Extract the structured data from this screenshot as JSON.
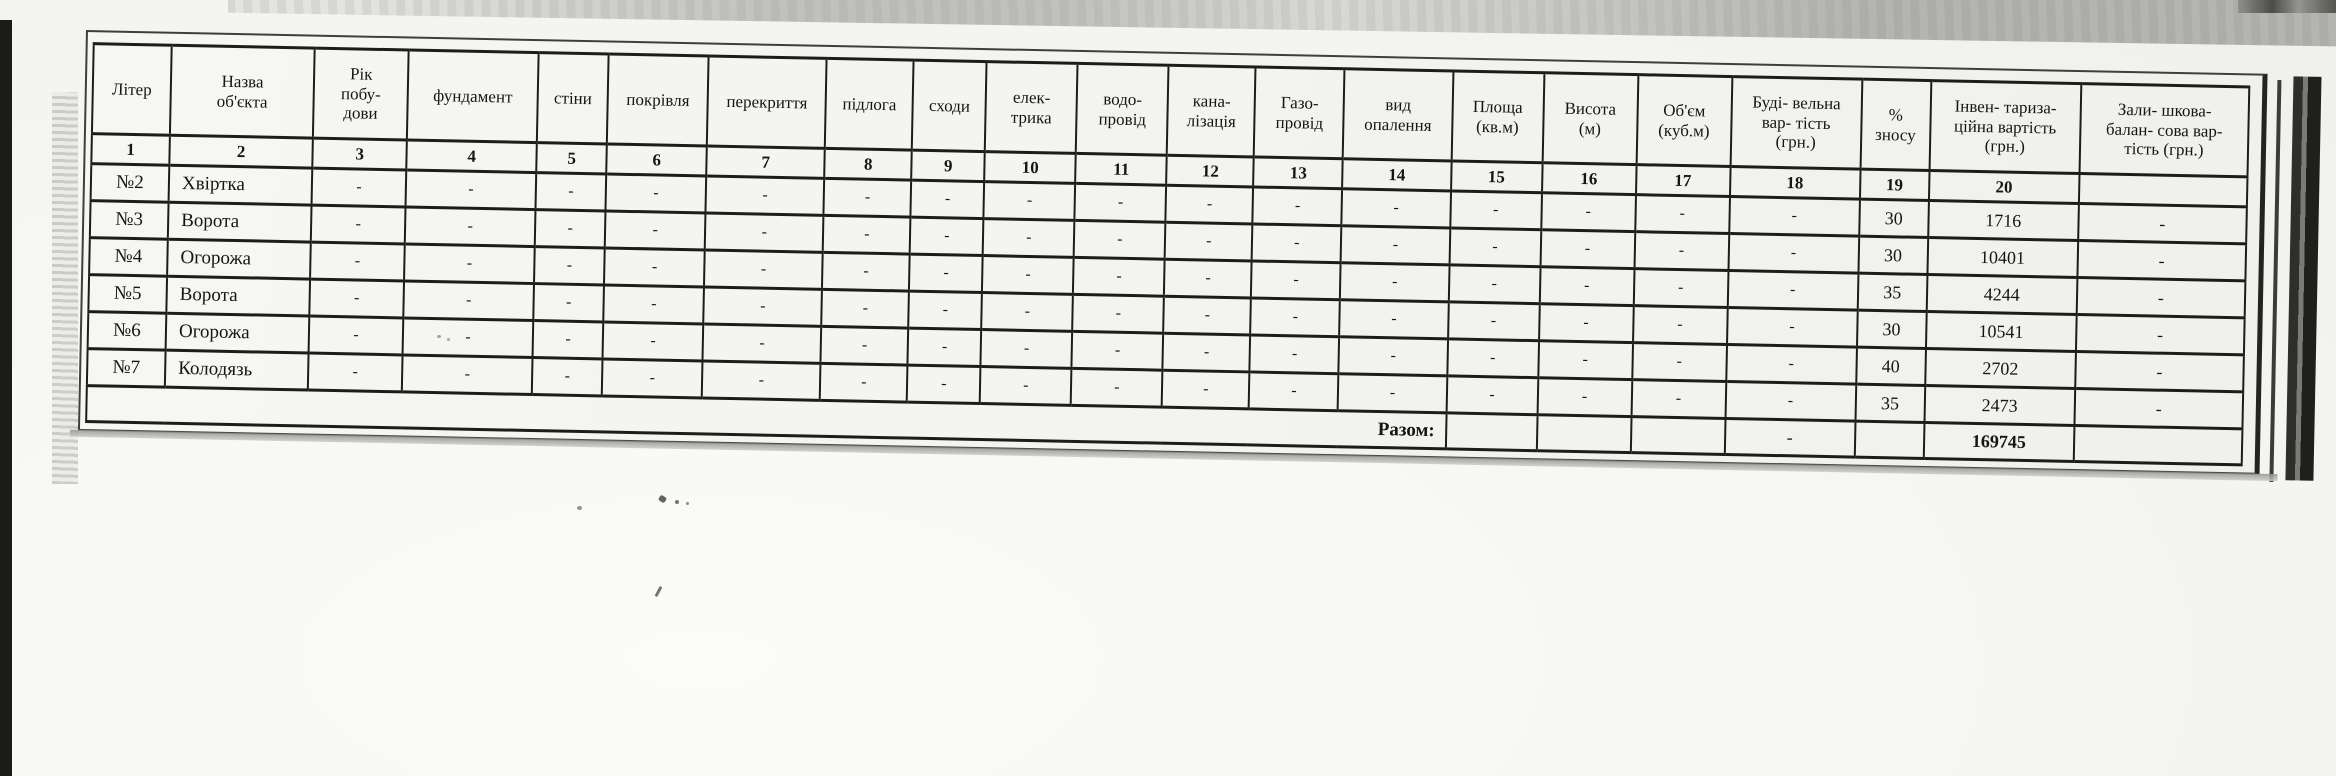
{
  "document": {
    "type": "scanned-inventory-valuation-table",
    "language": "uk",
    "table": {
      "columns": [
        {
          "label": "Літер",
          "num": "1"
        },
        {
          "label": "Назва\nоб'єкта",
          "num": "2"
        },
        {
          "label": "Рік\nпобу-\nдови",
          "num": "3"
        },
        {
          "label": "фундамент",
          "num": "4"
        },
        {
          "label": "стіни",
          "num": "5"
        },
        {
          "label": "покрівля",
          "num": "6"
        },
        {
          "label": "перекриття",
          "num": "7"
        },
        {
          "label": "підлога",
          "num": "8"
        },
        {
          "label": "сходи",
          "num": "9"
        },
        {
          "label": "елек-\nтрика",
          "num": "10"
        },
        {
          "label": "водо-\nпровід",
          "num": "11"
        },
        {
          "label": "кана-\nлізація",
          "num": "12"
        },
        {
          "label": "Газо-\nпровід",
          "num": "13"
        },
        {
          "label": "вид\nопалення",
          "num": "14"
        },
        {
          "label": "Площа\n(кв.м)",
          "num": "15"
        },
        {
          "label": "Висота\n(м)",
          "num": "16"
        },
        {
          "label": "Об'єм\n(куб.м)",
          "num": "17"
        },
        {
          "label": "Буді- вельна\nвар- тість\n(грн.)",
          "num": "18"
        },
        {
          "label": "%\nзносу",
          "num": "19"
        },
        {
          "label": "Інвен- тариза-\nційна вартість\n(грн.)",
          "num": "20"
        },
        {
          "label": "Зали- шкова-\nбалан- сова вар-\nтість (грн.)",
          "num": ""
        }
      ],
      "rows": [
        [
          "№2",
          "Хвіртка",
          "-",
          "-",
          "-",
          "-",
          "-",
          "-",
          "-",
          "-",
          "-",
          "-",
          "-",
          "-",
          "-",
          "-",
          "-",
          "-",
          "30",
          "1716",
          "-"
        ],
        [
          "№3",
          "Ворота",
          "-",
          "-",
          "-",
          "-",
          "-",
          "-",
          "-",
          "-",
          "-",
          "-",
          "-",
          "-",
          "-",
          "-",
          "-",
          "-",
          "30",
          "10401",
          "-"
        ],
        [
          "№4",
          "Огорожа",
          "-",
          "-",
          "-",
          "-",
          "-",
          "-",
          "-",
          "-",
          "-",
          "-",
          "-",
          "-",
          "-",
          "-",
          "-",
          "-",
          "35",
          "4244",
          "-"
        ],
        [
          "№5",
          "Ворота",
          "-",
          "-",
          "-",
          "-",
          "-",
          "-",
          "-",
          "-",
          "-",
          "-",
          "-",
          "-",
          "-",
          "-",
          "-",
          "-",
          "30",
          "10541",
          "-"
        ],
        [
          "№6",
          "Огорожа",
          "-",
          "-",
          "-",
          "-",
          "-",
          "-",
          "-",
          "-",
          "-",
          "-",
          "-",
          "-",
          "-",
          "-",
          "-",
          "-",
          "40",
          "2702",
          "-"
        ],
        [
          "№7",
          "Колодязь",
          "-",
          "-",
          "-",
          "-",
          "-",
          "-",
          "-",
          "-",
          "-",
          "-",
          "-",
          "-",
          "-",
          "-",
          "-",
          "-",
          "35",
          "2473",
          "-"
        ]
      ],
      "total_row": {
        "label": "Разом:",
        "cells": [
          "",
          "",
          "",
          "-",
          "",
          "169745",
          ""
        ]
      }
    }
  }
}
